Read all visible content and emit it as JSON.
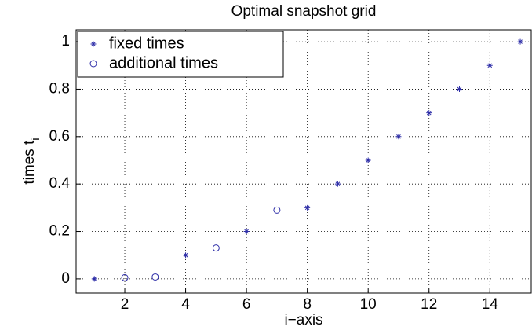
{
  "chart_data": {
    "type": "scatter",
    "title": "Optimal snapshot grid",
    "xlabel": "i−axis",
    "ylabel": "times t",
    "ylabel_subscript": "i",
    "xlim": [
      0.4,
      15.36
    ],
    "ylim": [
      -0.06,
      1.05
    ],
    "xticks": [
      2,
      4,
      6,
      8,
      10,
      12,
      14
    ],
    "yticks": [
      0,
      0.2,
      0.4,
      0.6,
      0.8,
      1
    ],
    "grid": true,
    "legend_position": "upper-left",
    "series": [
      {
        "name": "fixed times",
        "marker": "star",
        "color": "#2e2ea8",
        "x": [
          1,
          4,
          6,
          8,
          9,
          10,
          11,
          12,
          13,
          14,
          15
        ],
        "values": [
          0,
          0.1,
          0.2,
          0.3,
          0.4,
          0.5,
          0.6,
          0.7,
          0.8,
          0.9,
          1
        ]
      },
      {
        "name": "additional times",
        "marker": "circle",
        "color": "#2e2ea8",
        "x": [
          2,
          3,
          5,
          7
        ],
        "values": [
          0.005,
          0.008,
          0.13,
          0.29
        ]
      }
    ]
  }
}
